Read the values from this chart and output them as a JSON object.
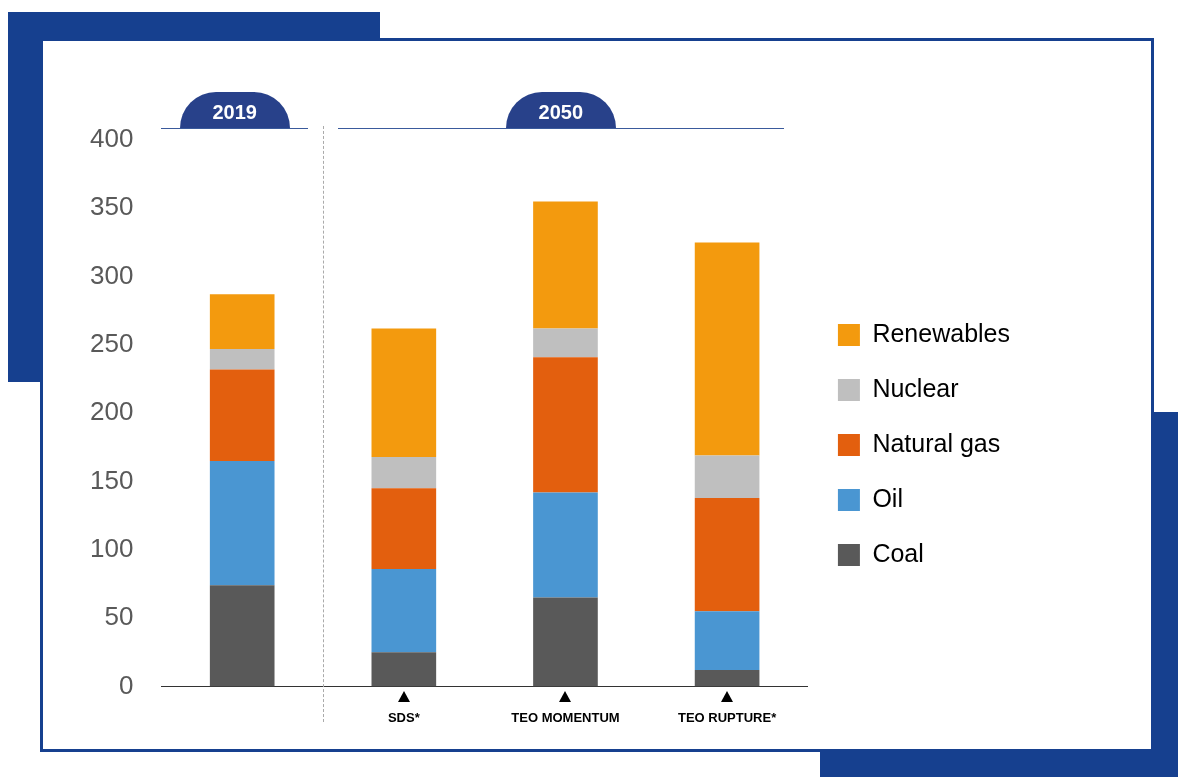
{
  "chart_data": {
    "type": "bar",
    "stacked": true,
    "categories": [
      null,
      "SDS*",
      "TEO MOMENTUM",
      "TEO RUPTURE*"
    ],
    "series": [
      {
        "name": "Coal",
        "color": "#595959",
        "values": [
          74,
          25,
          65,
          12
        ]
      },
      {
        "name": "Oil",
        "color": "#4a96d2",
        "values": [
          91,
          61,
          77,
          43
        ]
      },
      {
        "name": "Natural gas",
        "color": "#e35f0e",
        "values": [
          67,
          59,
          99,
          83
        ]
      },
      {
        "name": "Nuclear",
        "color": "#bfbfbf",
        "values": [
          15,
          23,
          21,
          31
        ]
      },
      {
        "name": "Renewables",
        "color": "#f39a0e",
        "values": [
          40,
          94,
          93,
          156
        ]
      }
    ],
    "ylim": [
      0,
      400
    ],
    "yticks": [
      0,
      50,
      100,
      150,
      200,
      250,
      300,
      350,
      400
    ],
    "grid": false,
    "legend": "right",
    "annotations": [
      "2019",
      "2050"
    ]
  }
}
